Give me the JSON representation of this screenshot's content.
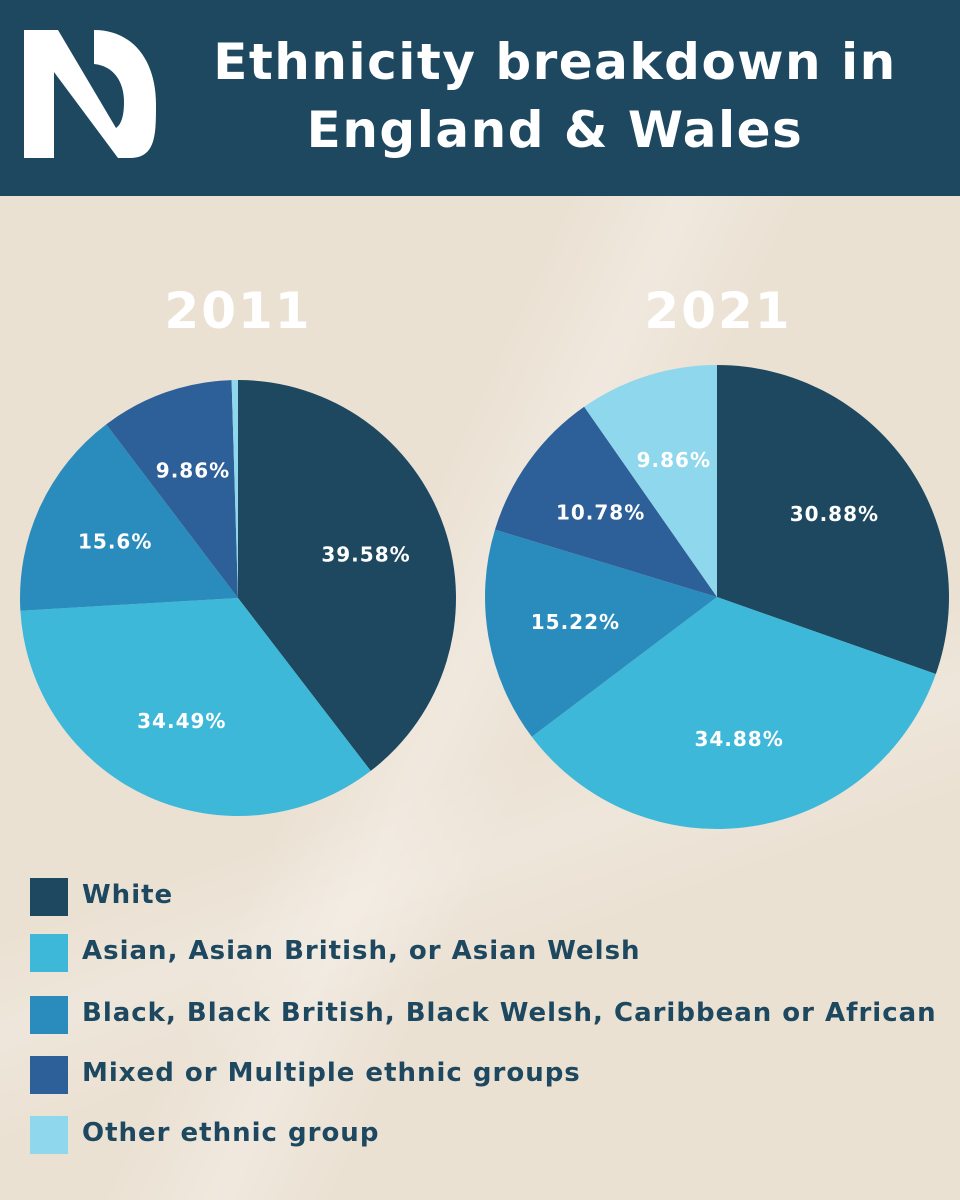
{
  "header": {
    "title_line1": "Ethnicity breakdown in",
    "title_line2": "England & Wales"
  },
  "colors": {
    "header_bg": "#1d4860",
    "page_bg": "#ebe1d3",
    "white": "#1d4860",
    "asian": "#3db8d8",
    "black": "#2a8cbd",
    "mixed": "#2d5f98",
    "other": "#8ed7ec"
  },
  "legend": {
    "items": [
      {
        "label": "White",
        "color": "#1d4860"
      },
      {
        "label": "Asian, Asian British, or Asian Welsh",
        "color": "#3db8d8"
      },
      {
        "label": "Black, Black British, Black Welsh, Caribbean or African",
        "color": "#2a8cbd"
      },
      {
        "label": "Mixed or Multiple ethnic groups",
        "color": "#2d5f98"
      },
      {
        "label": "Other ethnic group",
        "color": "#8ed7ec"
      }
    ]
  },
  "chart_data": [
    {
      "type": "pie",
      "title": "2011",
      "categories": [
        "White",
        "Asian, Asian British, or Asian Welsh",
        "Black, Black British, Black Welsh, Caribbean or African",
        "Mixed or Multiple ethnic groups",
        "Other ethnic group"
      ],
      "values": [
        39.58,
        34.49,
        15.6,
        9.86,
        0.47
      ],
      "labels": [
        "39.58%",
        "34.49%",
        "15.6%",
        "9.86%",
        ""
      ]
    },
    {
      "type": "pie",
      "title": "2021",
      "categories": [
        "White",
        "Asian, Asian British, or Asian Welsh",
        "Black, Black British, Black Welsh, Caribbean or African",
        "Mixed or Multiple ethnic groups",
        "Other ethnic group"
      ],
      "values": [
        30.88,
        34.88,
        15.22,
        10.78,
        9.86
      ],
      "labels": [
        "30.88%",
        "34.88%",
        "15.22%",
        "10.78%",
        "9.86%"
      ]
    }
  ]
}
